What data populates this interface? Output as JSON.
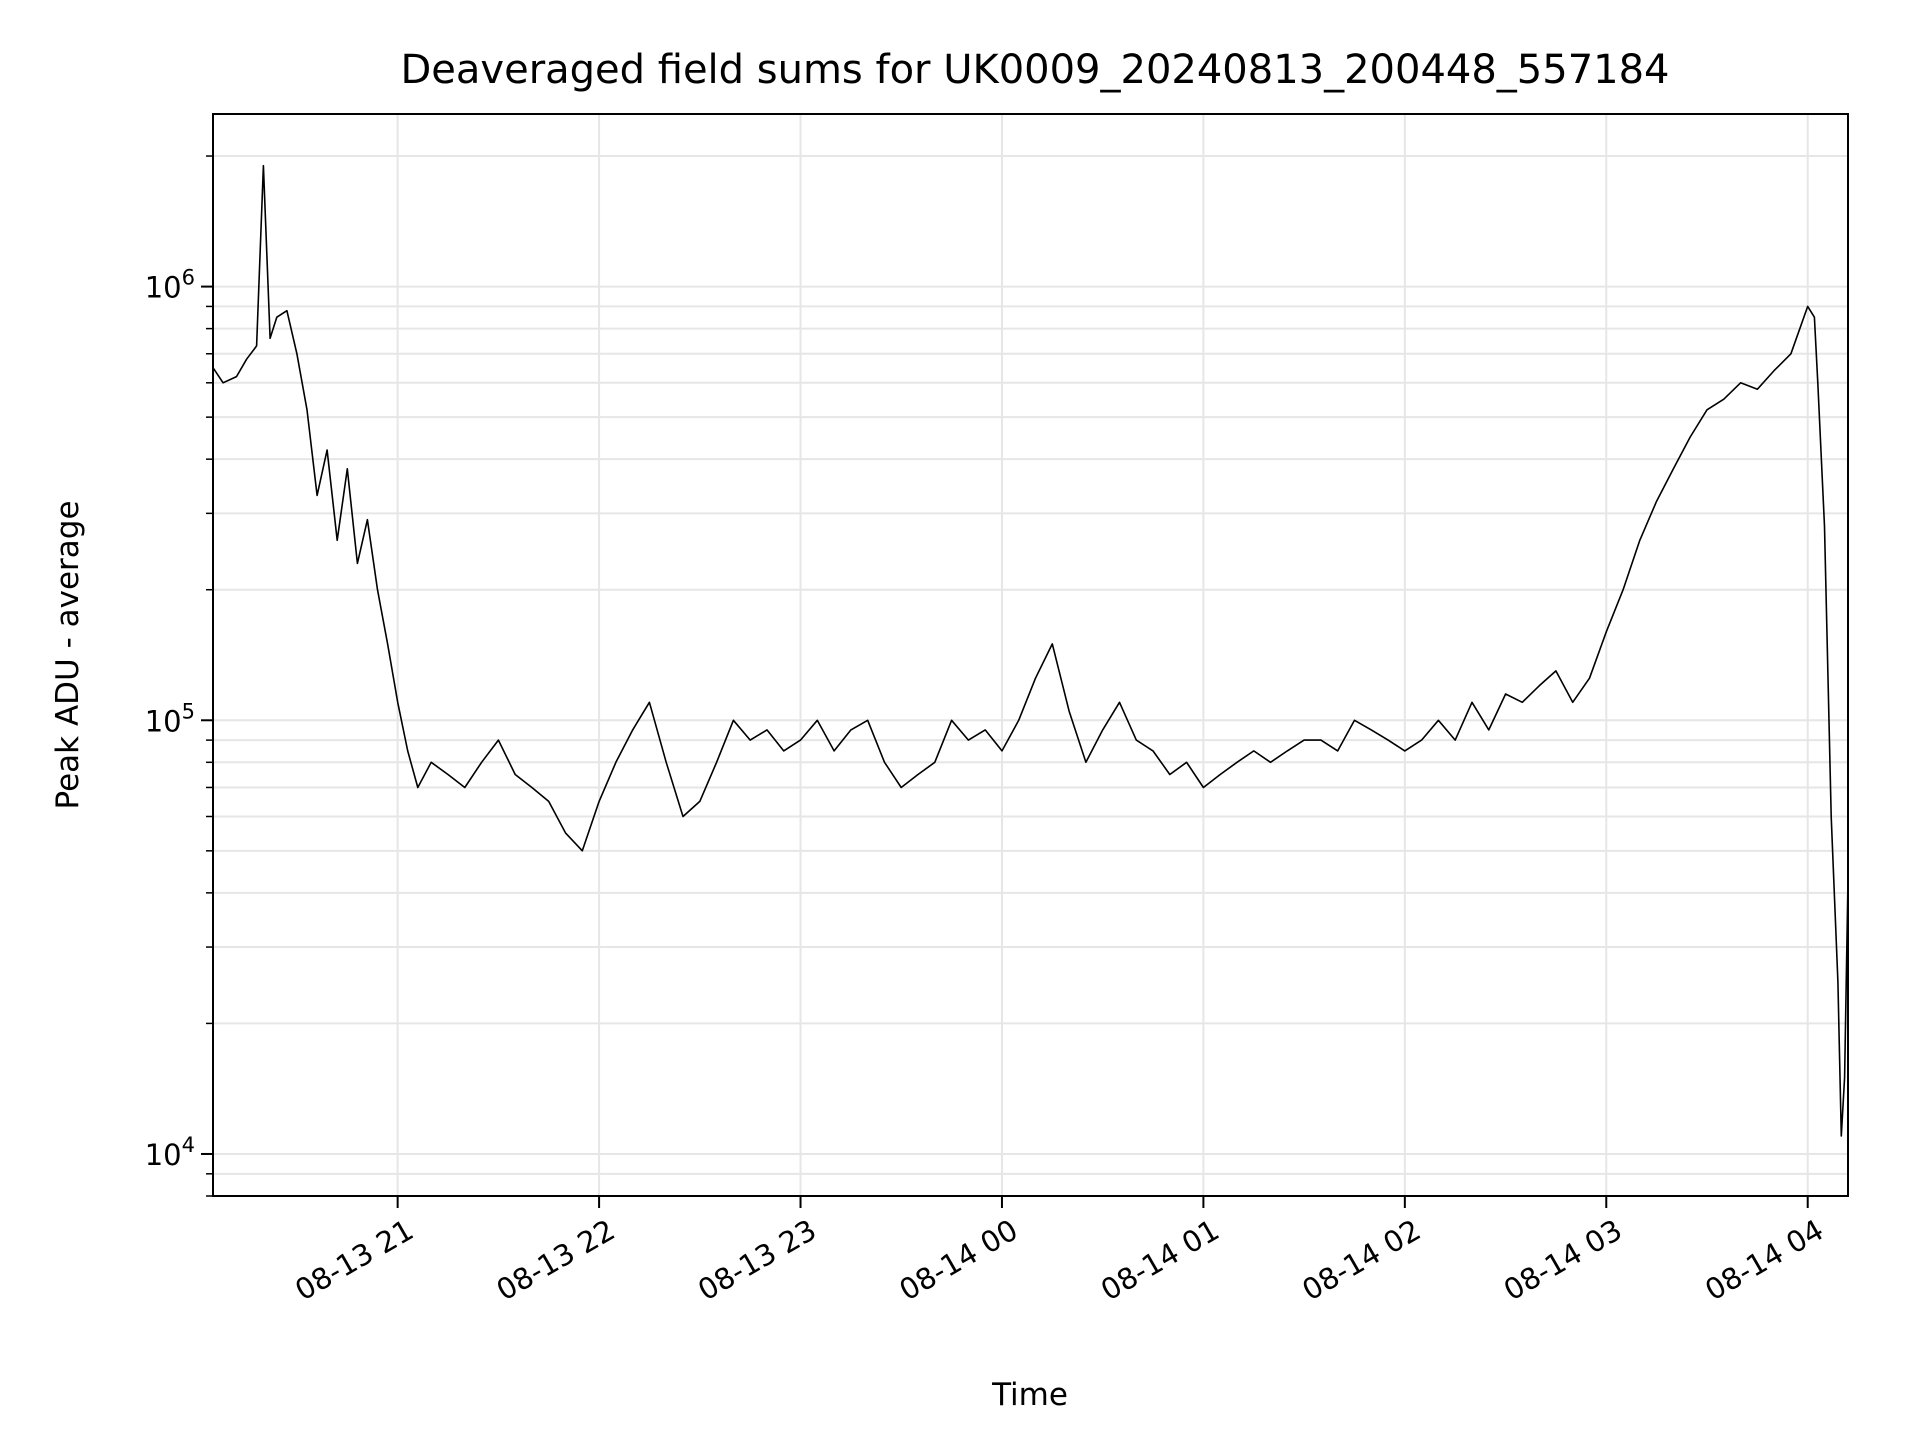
{
  "chart_data": {
    "type": "line",
    "title": "Deaveraged field sums for UK0009_20240813_200448_557184",
    "xlabel": "Time",
    "ylabel": "Peak ADU - average",
    "yscale": "log",
    "ylim": [
      8000,
      2500000
    ],
    "xlim": [
      "2024-08-13 20:05",
      "2024-08-14 04:12"
    ],
    "grid": true,
    "line_color": "#000000",
    "grid_color": "#e6e6e6",
    "x_ticks": [
      {
        "t": "2024-08-13 21:00",
        "label": "08-13 21"
      },
      {
        "t": "2024-08-13 22:00",
        "label": "08-13 22"
      },
      {
        "t": "2024-08-13 23:00",
        "label": "08-13 23"
      },
      {
        "t": "2024-08-14 00:00",
        "label": "08-14 00"
      },
      {
        "t": "2024-08-14 01:00",
        "label": "08-14 01"
      },
      {
        "t": "2024-08-14 02:00",
        "label": "08-14 02"
      },
      {
        "t": "2024-08-14 03:00",
        "label": "08-14 03"
      },
      {
        "t": "2024-08-14 04:00",
        "label": "08-14 04"
      }
    ],
    "y_ticks": [
      {
        "value": 10000,
        "base": "10",
        "exp": "4"
      },
      {
        "value": 100000,
        "base": "10",
        "exp": "5"
      },
      {
        "value": 1000000,
        "base": "10",
        "exp": "6"
      }
    ],
    "series": [
      {
        "points": [
          [
            "2024-08-13 20:05",
            650000
          ],
          [
            "2024-08-13 20:08",
            600000
          ],
          [
            "2024-08-13 20:12",
            620000
          ],
          [
            "2024-08-13 20:15",
            680000
          ],
          [
            "2024-08-13 20:18",
            730000
          ],
          [
            "2024-08-13 20:20",
            1900000
          ],
          [
            "2024-08-13 20:22",
            760000
          ],
          [
            "2024-08-13 20:24",
            850000
          ],
          [
            "2024-08-13 20:27",
            880000
          ],
          [
            "2024-08-13 20:30",
            700000
          ],
          [
            "2024-08-13 20:33",
            520000
          ],
          [
            "2024-08-13 20:36",
            330000
          ],
          [
            "2024-08-13 20:39",
            420000
          ],
          [
            "2024-08-13 20:42",
            260000
          ],
          [
            "2024-08-13 20:45",
            380000
          ],
          [
            "2024-08-13 20:48",
            230000
          ],
          [
            "2024-08-13 20:51",
            290000
          ],
          [
            "2024-08-13 20:54",
            200000
          ],
          [
            "2024-08-13 20:57",
            150000
          ],
          [
            "2024-08-13 21:00",
            110000
          ],
          [
            "2024-08-13 21:03",
            85000
          ],
          [
            "2024-08-13 21:06",
            70000
          ],
          [
            "2024-08-13 21:10",
            80000
          ],
          [
            "2024-08-13 21:15",
            75000
          ],
          [
            "2024-08-13 21:20",
            70000
          ],
          [
            "2024-08-13 21:25",
            80000
          ],
          [
            "2024-08-13 21:30",
            90000
          ],
          [
            "2024-08-13 21:35",
            75000
          ],
          [
            "2024-08-13 21:40",
            70000
          ],
          [
            "2024-08-13 21:45",
            65000
          ],
          [
            "2024-08-13 21:50",
            55000
          ],
          [
            "2024-08-13 21:55",
            50000
          ],
          [
            "2024-08-13 22:00",
            65000
          ],
          [
            "2024-08-13 22:05",
            80000
          ],
          [
            "2024-08-13 22:10",
            95000
          ],
          [
            "2024-08-13 22:15",
            110000
          ],
          [
            "2024-08-13 22:20",
            80000
          ],
          [
            "2024-08-13 22:25",
            60000
          ],
          [
            "2024-08-13 22:30",
            65000
          ],
          [
            "2024-08-13 22:35",
            80000
          ],
          [
            "2024-08-13 22:40",
            100000
          ],
          [
            "2024-08-13 22:45",
            90000
          ],
          [
            "2024-08-13 22:50",
            95000
          ],
          [
            "2024-08-13 22:55",
            85000
          ],
          [
            "2024-08-13 23:00",
            90000
          ],
          [
            "2024-08-13 23:05",
            100000
          ],
          [
            "2024-08-13 23:10",
            85000
          ],
          [
            "2024-08-13 23:15",
            95000
          ],
          [
            "2024-08-13 23:20",
            100000
          ],
          [
            "2024-08-13 23:25",
            80000
          ],
          [
            "2024-08-13 23:30",
            70000
          ],
          [
            "2024-08-13 23:35",
            75000
          ],
          [
            "2024-08-13 23:40",
            80000
          ],
          [
            "2024-08-13 23:45",
            100000
          ],
          [
            "2024-08-13 23:50",
            90000
          ],
          [
            "2024-08-13 23:55",
            95000
          ],
          [
            "2024-08-14 00:00",
            85000
          ],
          [
            "2024-08-14 00:05",
            100000
          ],
          [
            "2024-08-14 00:10",
            125000
          ],
          [
            "2024-08-14 00:15",
            150000
          ],
          [
            "2024-08-14 00:20",
            105000
          ],
          [
            "2024-08-14 00:25",
            80000
          ],
          [
            "2024-08-14 00:30",
            95000
          ],
          [
            "2024-08-14 00:35",
            110000
          ],
          [
            "2024-08-14 00:40",
            90000
          ],
          [
            "2024-08-14 00:45",
            85000
          ],
          [
            "2024-08-14 00:50",
            75000
          ],
          [
            "2024-08-14 00:55",
            80000
          ],
          [
            "2024-08-14 01:00",
            70000
          ],
          [
            "2024-08-14 01:05",
            75000
          ],
          [
            "2024-08-14 01:10",
            80000
          ],
          [
            "2024-08-14 01:15",
            85000
          ],
          [
            "2024-08-14 01:20",
            80000
          ],
          [
            "2024-08-14 01:25",
            85000
          ],
          [
            "2024-08-14 01:30",
            90000
          ],
          [
            "2024-08-14 01:35",
            90000
          ],
          [
            "2024-08-14 01:40",
            85000
          ],
          [
            "2024-08-14 01:45",
            100000
          ],
          [
            "2024-08-14 01:50",
            95000
          ],
          [
            "2024-08-14 01:55",
            90000
          ],
          [
            "2024-08-14 02:00",
            85000
          ],
          [
            "2024-08-14 02:05",
            90000
          ],
          [
            "2024-08-14 02:10",
            100000
          ],
          [
            "2024-08-14 02:15",
            90000
          ],
          [
            "2024-08-14 02:20",
            110000
          ],
          [
            "2024-08-14 02:25",
            95000
          ],
          [
            "2024-08-14 02:30",
            115000
          ],
          [
            "2024-08-14 02:35",
            110000
          ],
          [
            "2024-08-14 02:40",
            120000
          ],
          [
            "2024-08-14 02:45",
            130000
          ],
          [
            "2024-08-14 02:50",
            110000
          ],
          [
            "2024-08-14 02:55",
            125000
          ],
          [
            "2024-08-14 03:00",
            160000
          ],
          [
            "2024-08-14 03:05",
            200000
          ],
          [
            "2024-08-14 03:10",
            260000
          ],
          [
            "2024-08-14 03:15",
            320000
          ],
          [
            "2024-08-14 03:20",
            380000
          ],
          [
            "2024-08-14 03:25",
            450000
          ],
          [
            "2024-08-14 03:30",
            520000
          ],
          [
            "2024-08-14 03:35",
            550000
          ],
          [
            "2024-08-14 03:40",
            600000
          ],
          [
            "2024-08-14 03:45",
            580000
          ],
          [
            "2024-08-14 03:50",
            640000
          ],
          [
            "2024-08-14 03:55",
            700000
          ],
          [
            "2024-08-14 04:00",
            900000
          ],
          [
            "2024-08-14 04:02",
            850000
          ],
          [
            "2024-08-14 04:03",
            600000
          ],
          [
            "2024-08-14 04:05",
            280000
          ],
          [
            "2024-08-14 04:07",
            60000
          ],
          [
            "2024-08-14 04:09",
            25000
          ],
          [
            "2024-08-14 04:10",
            11000
          ],
          [
            "2024-08-14 04:11",
            15000
          ],
          [
            "2024-08-14 04:12",
            43000
          ]
        ]
      }
    ]
  }
}
